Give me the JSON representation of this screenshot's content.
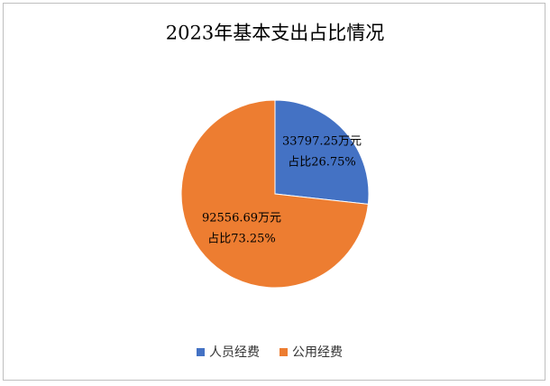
{
  "chart_data": {
    "type": "pie",
    "title": "2023年基本支出占比情况",
    "categories": [
      "人员经费",
      "公用经费"
    ],
    "values": [
      33797.25,
      92556.69
    ],
    "value_labels": [
      "33797.25万元",
      "92556.69万元"
    ],
    "percent_labels": [
      "占比26.75%",
      "占比73.25%"
    ],
    "colors": [
      "#4472c4",
      "#ed7d31"
    ],
    "legend": "bottom"
  }
}
